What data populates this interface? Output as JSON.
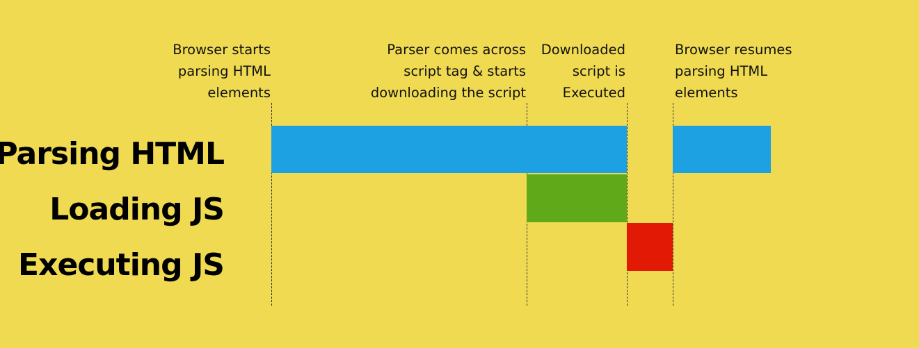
{
  "colors": {
    "background": "#f0da52",
    "parsing": "#1ea1e2",
    "loading": "#60aa1a",
    "executing": "#e21a05"
  },
  "annotations": [
    "Browser starts\nparsing HTML\nelements",
    "Parser comes across\nscript tag & starts\ndownloading the script",
    "Downloaded\nscript is\nExecuted",
    "Browser resumes\nparsing HTML\nelements"
  ],
  "rows": [
    {
      "label": "Parsing HTML"
    },
    {
      "label": "Loading JS"
    },
    {
      "label": "Executing JS"
    }
  ]
}
